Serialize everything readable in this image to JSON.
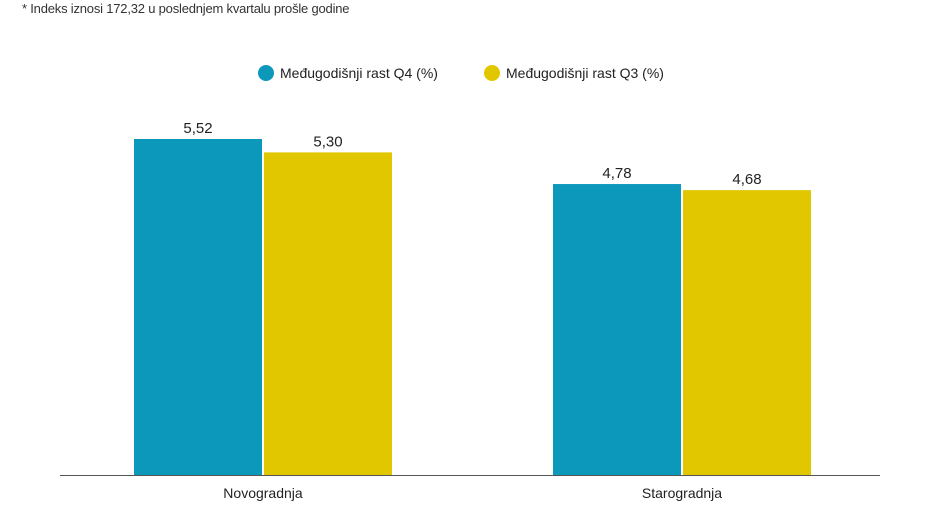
{
  "footnote": "* Indeks iznosi 172,32 u poslednjem kvartalu prošle godine",
  "chart_data": {
    "type": "bar",
    "categories": [
      "Novogradnja",
      "Starogradnja"
    ],
    "series": [
      {
        "name": "Međugodišnji rast Q4 (%)",
        "values": [
          5.52,
          4.78
        ],
        "labels": [
          "5,52",
          "4,78"
        ],
        "color": "#0b98bb"
      },
      {
        "name": "Međugodišnji rast Q3 (%)",
        "values": [
          5.3,
          4.68
        ],
        "labels": [
          "5,30",
          "4,68"
        ],
        "color": "#e1c700"
      }
    ],
    "title": "",
    "xlabel": "",
    "ylabel": "",
    "ylim": [
      0,
      5.52
    ],
    "grid": false,
    "legend": "top-center",
    "axis_color": "#555555"
  }
}
